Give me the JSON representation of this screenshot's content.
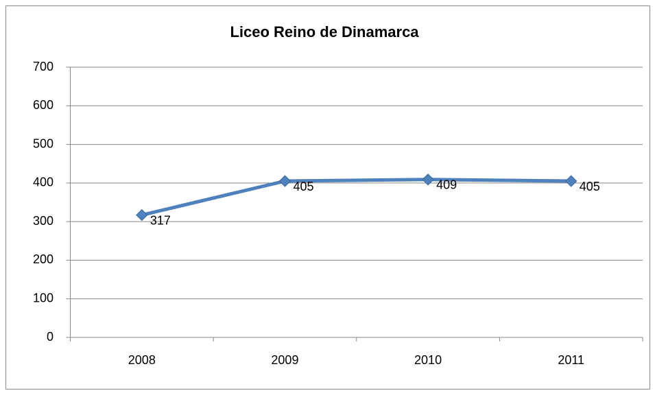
{
  "chart_data": {
    "type": "line",
    "title": "Liceo Reino de Dinamarca",
    "categories": [
      "2008",
      "2009",
      "2010",
      "2011"
    ],
    "series": [
      {
        "name": "Liceo Reino de Dinamarca",
        "color": "#4f81bd",
        "values": [
          317,
          405,
          409,
          405
        ]
      }
    ],
    "ylim": [
      0,
      700
    ],
    "yticks": [
      0,
      100,
      200,
      300,
      400,
      500,
      600,
      700
    ],
    "grid": true
  }
}
